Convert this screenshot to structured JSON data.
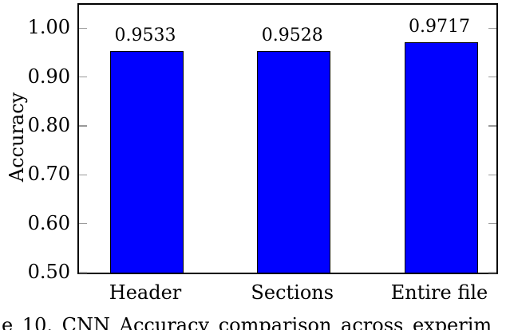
{
  "chart_data": {
    "type": "bar",
    "title": "",
    "categories": [
      "Header",
      "Sections",
      "Entire file"
    ],
    "values": [
      0.9533,
      0.9528,
      0.9717
    ],
    "value_labels": [
      "0.9533",
      "0.9528",
      "0.9717"
    ],
    "xlabel": "",
    "ylabel": "Accuracy",
    "ylim": [
      0.5,
      1.048
    ],
    "yticks": [
      0.5,
      0.6,
      0.7,
      0.8,
      0.9,
      1.0
    ],
    "ytick_labels": [
      "0.50",
      "0.60",
      "0.70",
      "0.80",
      "0.90",
      "1.00"
    ],
    "grid": false,
    "legend_position": "none",
    "bar_color": "#0000ff",
    "bar_border_color": "#000000",
    "axis_color": "#000000",
    "tick_color": "#999999"
  },
  "caption": {
    "text": "e 10. CNN Accuracy comparison across experim"
  }
}
